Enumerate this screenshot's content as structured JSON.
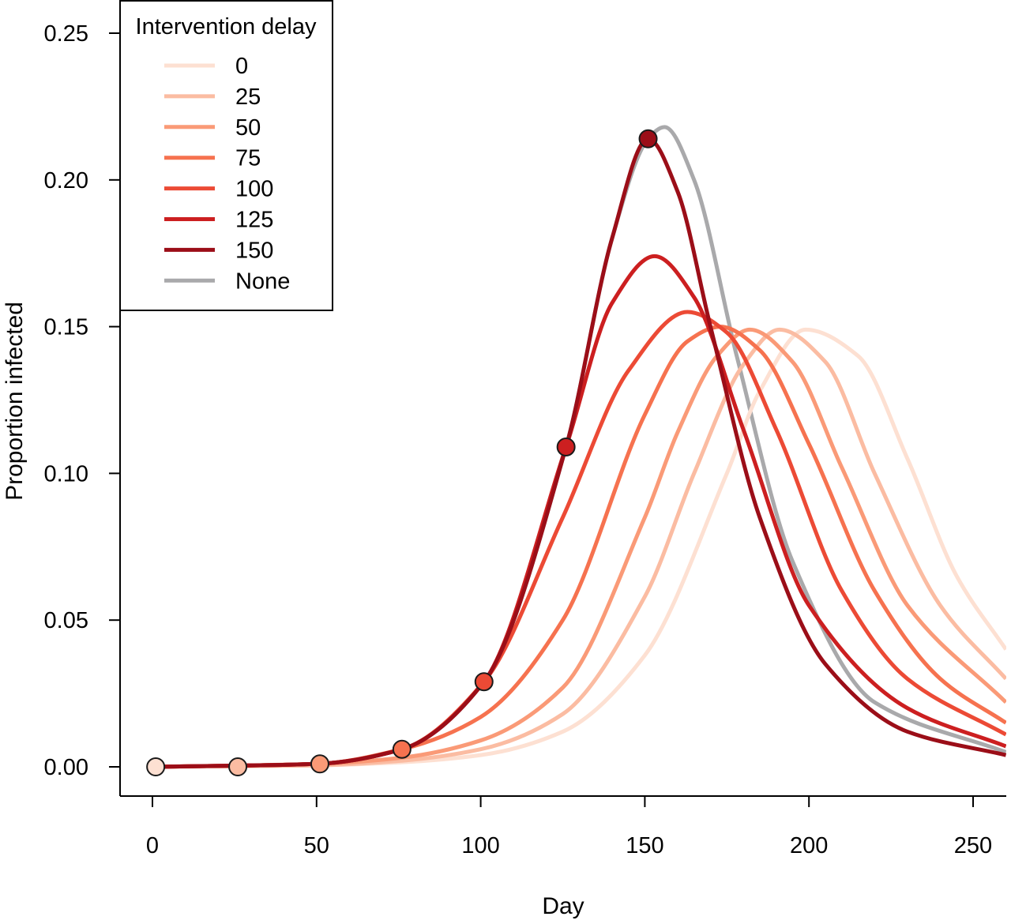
{
  "chart_data": {
    "type": "line",
    "title": "",
    "xlabel": "Day",
    "ylabel": "Proportion infected",
    "xlim": [
      -10,
      260
    ],
    "ylim": [
      -0.01,
      0.26
    ],
    "xticks": [
      0,
      50,
      100,
      150,
      200,
      250
    ],
    "yticks": [
      0.0,
      0.05,
      0.1,
      0.15,
      0.2,
      0.25
    ],
    "xtick_labels": [
      "0",
      "50",
      "100",
      "150",
      "200",
      "250"
    ],
    "ytick_labels": [
      "0.00",
      "0.05",
      "0.10",
      "0.15",
      "0.20",
      "0.25"
    ],
    "grid": false,
    "legend": {
      "title": "Intervention delay",
      "placement": "top-left"
    },
    "series": [
      {
        "name": "0",
        "color": "#fde0d2",
        "delay": 0,
        "intervention_marker": [
          1,
          0.0
        ],
        "x": [
          0,
          50,
          75,
          100,
          125,
          150,
          175,
          185,
          199,
          215,
          230,
          245,
          260
        ],
        "y": [
          0.0,
          0.0005,
          0.0015,
          0.004,
          0.012,
          0.038,
          0.1,
          0.128,
          0.149,
          0.14,
          0.105,
          0.065,
          0.04
        ]
      },
      {
        "name": "25",
        "color": "#fbbca2",
        "delay": 25,
        "intervention_marker": [
          26,
          0.0
        ],
        "x": [
          0,
          50,
          75,
          100,
          125,
          150,
          165,
          180,
          191,
          205,
          220,
          240,
          260
        ],
        "y": [
          0.0,
          0.0005,
          0.002,
          0.006,
          0.018,
          0.058,
          0.1,
          0.137,
          0.149,
          0.138,
          0.1,
          0.055,
          0.03
        ]
      },
      {
        "name": "50",
        "color": "#fa9a77",
        "delay": 50,
        "intervention_marker": [
          51,
          0.001
        ],
        "x": [
          0,
          50,
          75,
          100,
          125,
          150,
          160,
          172,
          182,
          195,
          210,
          230,
          260
        ],
        "y": [
          0.0,
          0.001,
          0.003,
          0.009,
          0.027,
          0.085,
          0.114,
          0.14,
          0.149,
          0.138,
          0.102,
          0.055,
          0.022
        ]
      },
      {
        "name": "75",
        "color": "#f6724f",
        "delay": 75,
        "intervention_marker": [
          76,
          0.006
        ],
        "x": [
          0,
          50,
          76,
          100,
          125,
          150,
          163,
          173,
          185,
          200,
          220,
          240,
          260
        ],
        "y": [
          0.0,
          0.001,
          0.006,
          0.017,
          0.05,
          0.12,
          0.145,
          0.15,
          0.142,
          0.11,
          0.06,
          0.03,
          0.015
        ]
      },
      {
        "name": "100",
        "color": "#ec4a35",
        "delay": 100,
        "intervention_marker": [
          101,
          0.029
        ],
        "x": [
          0,
          50,
          76,
          101,
          125,
          145,
          163,
          175,
          190,
          210,
          230,
          260
        ],
        "y": [
          0.0,
          0.001,
          0.006,
          0.029,
          0.085,
          0.135,
          0.155,
          0.148,
          0.115,
          0.06,
          0.03,
          0.011
        ]
      },
      {
        "name": "125",
        "color": "#cc1f20",
        "delay": 125,
        "intervention_marker": [
          126,
          0.109
        ],
        "x": [
          0,
          50,
          76,
          101,
          126,
          140,
          153,
          165,
          180,
          200,
          230,
          260
        ],
        "y": [
          0.0,
          0.001,
          0.006,
          0.029,
          0.109,
          0.158,
          0.174,
          0.16,
          0.115,
          0.055,
          0.02,
          0.007
        ]
      },
      {
        "name": "150",
        "color": "#9b0e18",
        "delay": 150,
        "intervention_marker": [
          151,
          0.214
        ],
        "x": [
          0,
          50,
          76,
          101,
          126,
          140,
          151,
          160,
          170,
          185,
          205,
          230,
          260
        ],
        "y": [
          0.0,
          0.001,
          0.006,
          0.029,
          0.109,
          0.18,
          0.214,
          0.196,
          0.15,
          0.085,
          0.035,
          0.012,
          0.004
        ]
      },
      {
        "name": "None",
        "color": "#a9a9ab",
        "delay": null,
        "intervention_marker": null,
        "x": [
          0,
          50,
          76,
          101,
          126,
          140,
          151,
          156,
          165,
          178,
          195,
          220,
          260
        ],
        "y": [
          0.0,
          0.001,
          0.006,
          0.029,
          0.109,
          0.18,
          0.214,
          0.218,
          0.2,
          0.14,
          0.07,
          0.022,
          0.005
        ]
      }
    ]
  }
}
